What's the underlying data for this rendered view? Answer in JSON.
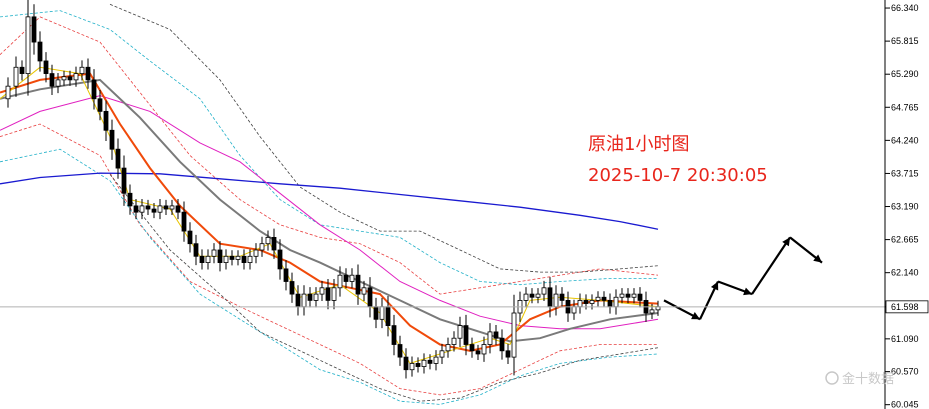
{
  "chart_data": {
    "type": "candlestick",
    "annotation_title": "原油1小时图",
    "annotation_datetime": "2025-10-7 20:30:05",
    "watermark": "金十数据",
    "ylim": [
      60.04,
      66.42
    ],
    "y_ticks": [
      "66.340",
      "65.815",
      "65.290",
      "64.765",
      "64.240",
      "63.715",
      "63.190",
      "62.665",
      "62.140",
      "61.598",
      "61.090",
      "60.570",
      "60.045"
    ],
    "current_price": 61.598,
    "grid": false,
    "colors": {
      "candle": "#000000",
      "ma_fast": "#e8c400",
      "ma_mid": "#f04a0a",
      "ma_slow": "#7a7a7a",
      "ma_long": "#e020c0",
      "ma_longest": "#1a1ad0",
      "band_red": "#e84040",
      "band_cyan": "#20b0c8",
      "band_black": "#404040",
      "forecast": "#000000",
      "annotation": "#e8261c",
      "price_line": "#b0b0b0"
    },
    "price_path": [
      [
        0,
        64.9
      ],
      [
        8,
        65.1
      ],
      [
        16,
        65.4
      ],
      [
        22,
        65.3
      ],
      [
        28,
        66.2
      ],
      [
        34,
        65.8
      ],
      [
        40,
        65.5
      ],
      [
        46,
        65.3
      ],
      [
        52,
        65.1
      ],
      [
        58,
        65.2
      ],
      [
        64,
        65.25
      ],
      [
        70,
        65.2
      ],
      [
        76,
        65.3
      ],
      [
        82,
        65.4
      ],
      [
        88,
        65.2
      ],
      [
        94,
        64.9
      ],
      [
        100,
        64.7
      ],
      [
        106,
        64.4
      ],
      [
        112,
        64.1
      ],
      [
        118,
        63.8
      ],
      [
        124,
        63.4
      ],
      [
        130,
        63.2
      ],
      [
        136,
        63.1
      ],
      [
        142,
        63.2
      ],
      [
        148,
        63.15
      ],
      [
        154,
        63.1
      ],
      [
        160,
        63.2
      ],
      [
        166,
        63.15
      ],
      [
        172,
        63.2
      ],
      [
        178,
        63.1
      ],
      [
        184,
        62.8
      ],
      [
        190,
        62.6
      ],
      [
        196,
        62.4
      ],
      [
        202,
        62.3
      ],
      [
        208,
        62.4
      ],
      [
        214,
        62.5
      ],
      [
        220,
        62.3
      ],
      [
        226,
        62.4
      ],
      [
        232,
        62.35
      ],
      [
        238,
        62.4
      ],
      [
        244,
        62.3
      ],
      [
        250,
        62.4
      ],
      [
        256,
        62.5
      ],
      [
        262,
        62.6
      ],
      [
        268,
        62.7
      ],
      [
        274,
        62.5
      ],
      [
        280,
        62.2
      ],
      [
        286,
        62.0
      ],
      [
        292,
        61.8
      ],
      [
        298,
        61.6
      ],
      [
        304,
        61.8
      ],
      [
        310,
        61.7
      ],
      [
        316,
        61.8
      ],
      [
        322,
        61.9
      ],
      [
        328,
        61.7
      ],
      [
        334,
        61.9
      ],
      [
        340,
        62.1
      ],
      [
        346,
        62.0
      ],
      [
        352,
        62.1
      ],
      [
        358,
        61.8
      ],
      [
        364,
        61.9
      ],
      [
        370,
        61.6
      ],
      [
        376,
        61.4
      ],
      [
        382,
        61.6
      ],
      [
        388,
        61.3
      ],
      [
        394,
        61.0
      ],
      [
        400,
        60.8
      ],
      [
        406,
        60.6
      ],
      [
        412,
        60.7
      ],
      [
        418,
        60.65
      ],
      [
        424,
        60.75
      ],
      [
        430,
        60.7
      ],
      [
        436,
        60.8
      ],
      [
        442,
        60.9
      ],
      [
        448,
        61.0
      ],
      [
        454,
        61.1
      ],
      [
        460,
        61.3
      ],
      [
        466,
        61.0
      ],
      [
        472,
        60.9
      ],
      [
        478,
        60.85
      ],
      [
        484,
        61.0
      ],
      [
        490,
        61.2
      ],
      [
        496,
        61.1
      ],
      [
        502,
        60.9
      ],
      [
        508,
        60.8
      ],
      [
        514,
        61.5
      ],
      [
        520,
        61.7
      ],
      [
        526,
        61.8
      ],
      [
        532,
        61.75
      ],
      [
        538,
        61.8
      ],
      [
        544,
        61.9
      ],
      [
        550,
        61.6
      ],
      [
        556,
        61.8
      ],
      [
        562,
        61.7
      ],
      [
        568,
        61.5
      ],
      [
        574,
        61.6
      ],
      [
        580,
        61.7
      ],
      [
        586,
        61.65
      ],
      [
        592,
        61.7
      ],
      [
        598,
        61.75
      ],
      [
        604,
        61.7
      ],
      [
        610,
        61.6
      ],
      [
        616,
        61.75
      ],
      [
        622,
        61.8
      ],
      [
        628,
        61.75
      ],
      [
        634,
        61.8
      ],
      [
        640,
        61.7
      ],
      [
        646,
        61.5
      ],
      [
        652,
        61.55
      ],
      [
        658,
        61.6
      ]
    ],
    "ma_fast": [
      [
        0,
        64.9
      ],
      [
        40,
        65.4
      ],
      [
        80,
        65.3
      ],
      [
        110,
        64.3
      ],
      [
        130,
        63.3
      ],
      [
        170,
        63.15
      ],
      [
        200,
        62.4
      ],
      [
        240,
        62.4
      ],
      [
        270,
        62.6
      ],
      [
        300,
        61.75
      ],
      [
        340,
        61.95
      ],
      [
        380,
        61.5
      ],
      [
        410,
        60.7
      ],
      [
        450,
        60.9
      ],
      [
        490,
        61.1
      ],
      [
        510,
        61.0
      ],
      [
        530,
        61.7
      ],
      [
        560,
        61.75
      ],
      [
        600,
        61.7
      ],
      [
        658,
        61.6
      ]
    ],
    "ma_mid": [
      [
        0,
        65.0
      ],
      [
        40,
        65.2
      ],
      [
        90,
        65.3
      ],
      [
        120,
        64.5
      ],
      [
        150,
        63.8
      ],
      [
        180,
        63.2
      ],
      [
        220,
        62.6
      ],
      [
        260,
        62.5
      ],
      [
        290,
        62.3
      ],
      [
        320,
        62.0
      ],
      [
        350,
        61.9
      ],
      [
        380,
        61.8
      ],
      [
        410,
        61.3
      ],
      [
        440,
        61.0
      ],
      [
        470,
        60.9
      ],
      [
        500,
        61.0
      ],
      [
        530,
        61.4
      ],
      [
        560,
        61.6
      ],
      [
        600,
        61.7
      ],
      [
        658,
        61.65
      ]
    ],
    "ma_slow": [
      [
        0,
        64.9
      ],
      [
        40,
        65.05
      ],
      [
        100,
        65.2
      ],
      [
        140,
        64.6
      ],
      [
        180,
        63.9
      ],
      [
        220,
        63.3
      ],
      [
        260,
        62.8
      ],
      [
        290,
        62.5
      ],
      [
        320,
        62.3
      ],
      [
        360,
        62.0
      ],
      [
        400,
        61.7
      ],
      [
        440,
        61.4
      ],
      [
        480,
        61.2
      ],
      [
        510,
        61.05
      ],
      [
        540,
        61.1
      ],
      [
        570,
        61.25
      ],
      [
        610,
        61.4
      ],
      [
        658,
        61.5
      ]
    ],
    "ma_long": [
      [
        0,
        64.4
      ],
      [
        40,
        64.7
      ],
      [
        100,
        64.95
      ],
      [
        150,
        64.7
      ],
      [
        200,
        64.2
      ],
      [
        240,
        63.9
      ],
      [
        280,
        63.4
      ],
      [
        320,
        62.9
      ],
      [
        360,
        62.5
      ],
      [
        400,
        62.0
      ],
      [
        440,
        61.7
      ],
      [
        480,
        61.45
      ],
      [
        520,
        61.3
      ],
      [
        560,
        61.25
      ],
      [
        600,
        61.25
      ],
      [
        658,
        61.4
      ]
    ],
    "ma_longest": [
      [
        0,
        63.55
      ],
      [
        40,
        63.65
      ],
      [
        100,
        63.72
      ],
      [
        160,
        63.71
      ],
      [
        220,
        63.63
      ],
      [
        280,
        63.55
      ],
      [
        340,
        63.48
      ],
      [
        400,
        63.38
      ],
      [
        460,
        63.28
      ],
      [
        520,
        63.18
      ],
      [
        580,
        63.05
      ],
      [
        620,
        62.95
      ],
      [
        658,
        62.83
      ]
    ],
    "band_red_upper": [
      [
        0,
        65.6
      ],
      [
        40,
        66.2
      ],
      [
        100,
        65.8
      ],
      [
        140,
        65.0
      ],
      [
        190,
        64.0
      ],
      [
        240,
        63.3
      ],
      [
        280,
        62.9
      ],
      [
        320,
        62.7
      ],
      [
        360,
        62.6
      ],
      [
        400,
        62.3
      ],
      [
        440,
        61.8
      ],
      [
        480,
        61.9
      ],
      [
        520,
        62.0
      ],
      [
        560,
        62.1
      ],
      [
        600,
        62.2
      ],
      [
        658,
        62.1
      ]
    ],
    "band_red_lower": [
      [
        0,
        64.3
      ],
      [
        40,
        64.5
      ],
      [
        100,
        64.0
      ],
      [
        140,
        62.9
      ],
      [
        190,
        62.0
      ],
      [
        240,
        61.6
      ],
      [
        280,
        61.3
      ],
      [
        320,
        61.0
      ],
      [
        360,
        60.7
      ],
      [
        400,
        60.3
      ],
      [
        440,
        60.2
      ],
      [
        480,
        60.3
      ],
      [
        520,
        60.6
      ],
      [
        560,
        60.9
      ],
      [
        600,
        61.0
      ],
      [
        658,
        61.0
      ]
    ],
    "band_cyan_upper": [
      [
        0,
        66.2
      ],
      [
        60,
        66.3
      ],
      [
        110,
        66.0
      ],
      [
        150,
        65.5
      ],
      [
        200,
        64.9
      ],
      [
        240,
        64.0
      ],
      [
        280,
        63.3
      ],
      [
        320,
        62.9
      ],
      [
        360,
        62.8
      ],
      [
        400,
        62.7
      ],
      [
        440,
        62.3
      ],
      [
        480,
        62.0
      ],
      [
        520,
        61.95
      ],
      [
        560,
        62.0
      ],
      [
        610,
        62.05
      ],
      [
        658,
        62.05
      ]
    ],
    "band_cyan_lower": [
      [
        0,
        63.9
      ],
      [
        60,
        64.1
      ],
      [
        110,
        63.6
      ],
      [
        150,
        62.7
      ],
      [
        200,
        61.8
      ],
      [
        240,
        61.4
      ],
      [
        280,
        61.0
      ],
      [
        320,
        60.6
      ],
      [
        360,
        60.4
      ],
      [
        400,
        60.1
      ],
      [
        440,
        60.05
      ],
      [
        480,
        60.2
      ],
      [
        520,
        60.5
      ],
      [
        560,
        60.7
      ],
      [
        610,
        60.8
      ],
      [
        658,
        60.85
      ]
    ],
    "band_black_upper": [
      [
        110,
        66.4
      ],
      [
        170,
        66.0
      ],
      [
        220,
        65.2
      ],
      [
        260,
        64.3
      ],
      [
        300,
        63.5
      ],
      [
        340,
        63.1
      ],
      [
        380,
        62.8
      ],
      [
        420,
        62.8
      ],
      [
        460,
        62.5
      ],
      [
        500,
        62.2
      ],
      [
        540,
        62.15
      ],
      [
        580,
        62.15
      ],
      [
        620,
        62.2
      ],
      [
        658,
        62.25
      ]
    ],
    "band_black_lower": [
      [
        110,
        63.7
      ],
      [
        170,
        62.5
      ],
      [
        220,
        61.8
      ],
      [
        260,
        61.2
      ],
      [
        300,
        60.9
      ],
      [
        340,
        60.6
      ],
      [
        380,
        60.3
      ],
      [
        420,
        60.1
      ],
      [
        460,
        60.15
      ],
      [
        500,
        60.4
      ],
      [
        540,
        60.55
      ],
      [
        580,
        60.75
      ],
      [
        620,
        60.85
      ],
      [
        658,
        60.95
      ]
    ],
    "forecast_path": [
      [
        664,
        61.7
      ],
      [
        700,
        61.4
      ],
      [
        718,
        62.0
      ],
      [
        735,
        61.85
      ],
      [
        752,
        61.8
      ],
      [
        790,
        62.7
      ],
      [
        822,
        62.3
      ]
    ]
  }
}
